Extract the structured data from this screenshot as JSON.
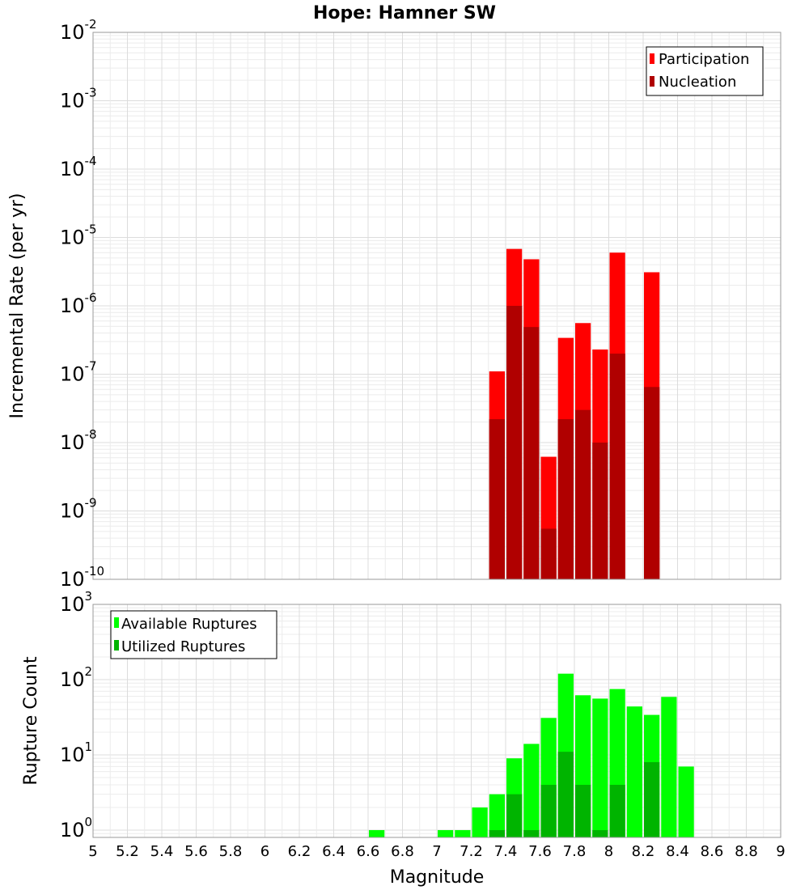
{
  "chart_data": [
    {
      "type": "bar",
      "title": "Hope: Hamner SW",
      "xlabel": "",
      "ylabel": "Incremental Rate (per yr)",
      "xlim": [
        5,
        9
      ],
      "ylim": [
        1e-10,
        0.01
      ],
      "yscale": "log",
      "bar_width": 0.1,
      "grid": true,
      "legend_position": "top-right",
      "ytick_exponents": [
        "-2",
        "-3",
        "-4",
        "-5",
        "-6",
        "-7",
        "-8",
        "-9",
        "-10"
      ],
      "series": [
        {
          "name": "Participation",
          "color": "#ff0000",
          "points": [
            {
              "x": 7.35,
              "y": 1.1e-07
            },
            {
              "x": 7.45,
              "y": 6.8e-06
            },
            {
              "x": 7.55,
              "y": 4.8e-06
            },
            {
              "x": 7.65,
              "y": 6.2e-09
            },
            {
              "x": 7.75,
              "y": 3.4e-07
            },
            {
              "x": 7.85,
              "y": 5.6e-07
            },
            {
              "x": 7.95,
              "y": 2.3e-07
            },
            {
              "x": 8.05,
              "y": 6e-06
            },
            {
              "x": 8.25,
              "y": 3.1e-06
            }
          ]
        },
        {
          "name": "Nucleation",
          "color": "#b00000",
          "points": [
            {
              "x": 7.35,
              "y": 2.2e-08
            },
            {
              "x": 7.45,
              "y": 1e-06
            },
            {
              "x": 7.55,
              "y": 4.9e-07
            },
            {
              "x": 7.65,
              "y": 5.5e-10
            },
            {
              "x": 7.75,
              "y": 2.2e-08
            },
            {
              "x": 7.85,
              "y": 3e-08
            },
            {
              "x": 7.95,
              "y": 1e-08
            },
            {
              "x": 8.05,
              "y": 2e-07
            },
            {
              "x": 8.25,
              "y": 6.5e-08
            }
          ]
        }
      ]
    },
    {
      "type": "bar",
      "title": "",
      "xlabel": "Magnitude",
      "ylabel": "Rupture Count",
      "xlim": [
        5,
        9
      ],
      "ylim": [
        0.8,
        1000
      ],
      "yscale": "log",
      "bar_width": 0.1,
      "grid": true,
      "legend_position": "top-left",
      "xticks": [
        "5",
        "5.2",
        "5.4",
        "5.6",
        "5.8",
        "6",
        "6.2",
        "6.4",
        "6.6",
        "6.8",
        "7",
        "7.2",
        "7.4",
        "7.6",
        "7.8",
        "8",
        "8.2",
        "8.4",
        "8.6",
        "8.8",
        "9"
      ],
      "ytick_exponents": [
        "3",
        "2",
        "1",
        "0"
      ],
      "series": [
        {
          "name": "Available Ruptures",
          "color": "#00ff00",
          "points": [
            {
              "x": 6.65,
              "y": 1
            },
            {
              "x": 7.05,
              "y": 1
            },
            {
              "x": 7.15,
              "y": 1
            },
            {
              "x": 7.25,
              "y": 2
            },
            {
              "x": 7.35,
              "y": 3
            },
            {
              "x": 7.45,
              "y": 9
            },
            {
              "x": 7.55,
              "y": 14
            },
            {
              "x": 7.65,
              "y": 31
            },
            {
              "x": 7.75,
              "y": 120
            },
            {
              "x": 7.85,
              "y": 62
            },
            {
              "x": 7.95,
              "y": 56
            },
            {
              "x": 8.05,
              "y": 75
            },
            {
              "x": 8.15,
              "y": 44
            },
            {
              "x": 8.25,
              "y": 34
            },
            {
              "x": 8.35,
              "y": 59
            },
            {
              "x": 8.45,
              "y": 7
            }
          ]
        },
        {
          "name": "Utilized Ruptures",
          "color": "#00b400",
          "points": [
            {
              "x": 7.35,
              "y": 1
            },
            {
              "x": 7.45,
              "y": 3
            },
            {
              "x": 7.55,
              "y": 1
            },
            {
              "x": 7.65,
              "y": 4
            },
            {
              "x": 7.75,
              "y": 11
            },
            {
              "x": 7.85,
              "y": 4
            },
            {
              "x": 7.95,
              "y": 1
            },
            {
              "x": 8.05,
              "y": 4
            },
            {
              "x": 8.25,
              "y": 8
            }
          ]
        }
      ]
    }
  ]
}
